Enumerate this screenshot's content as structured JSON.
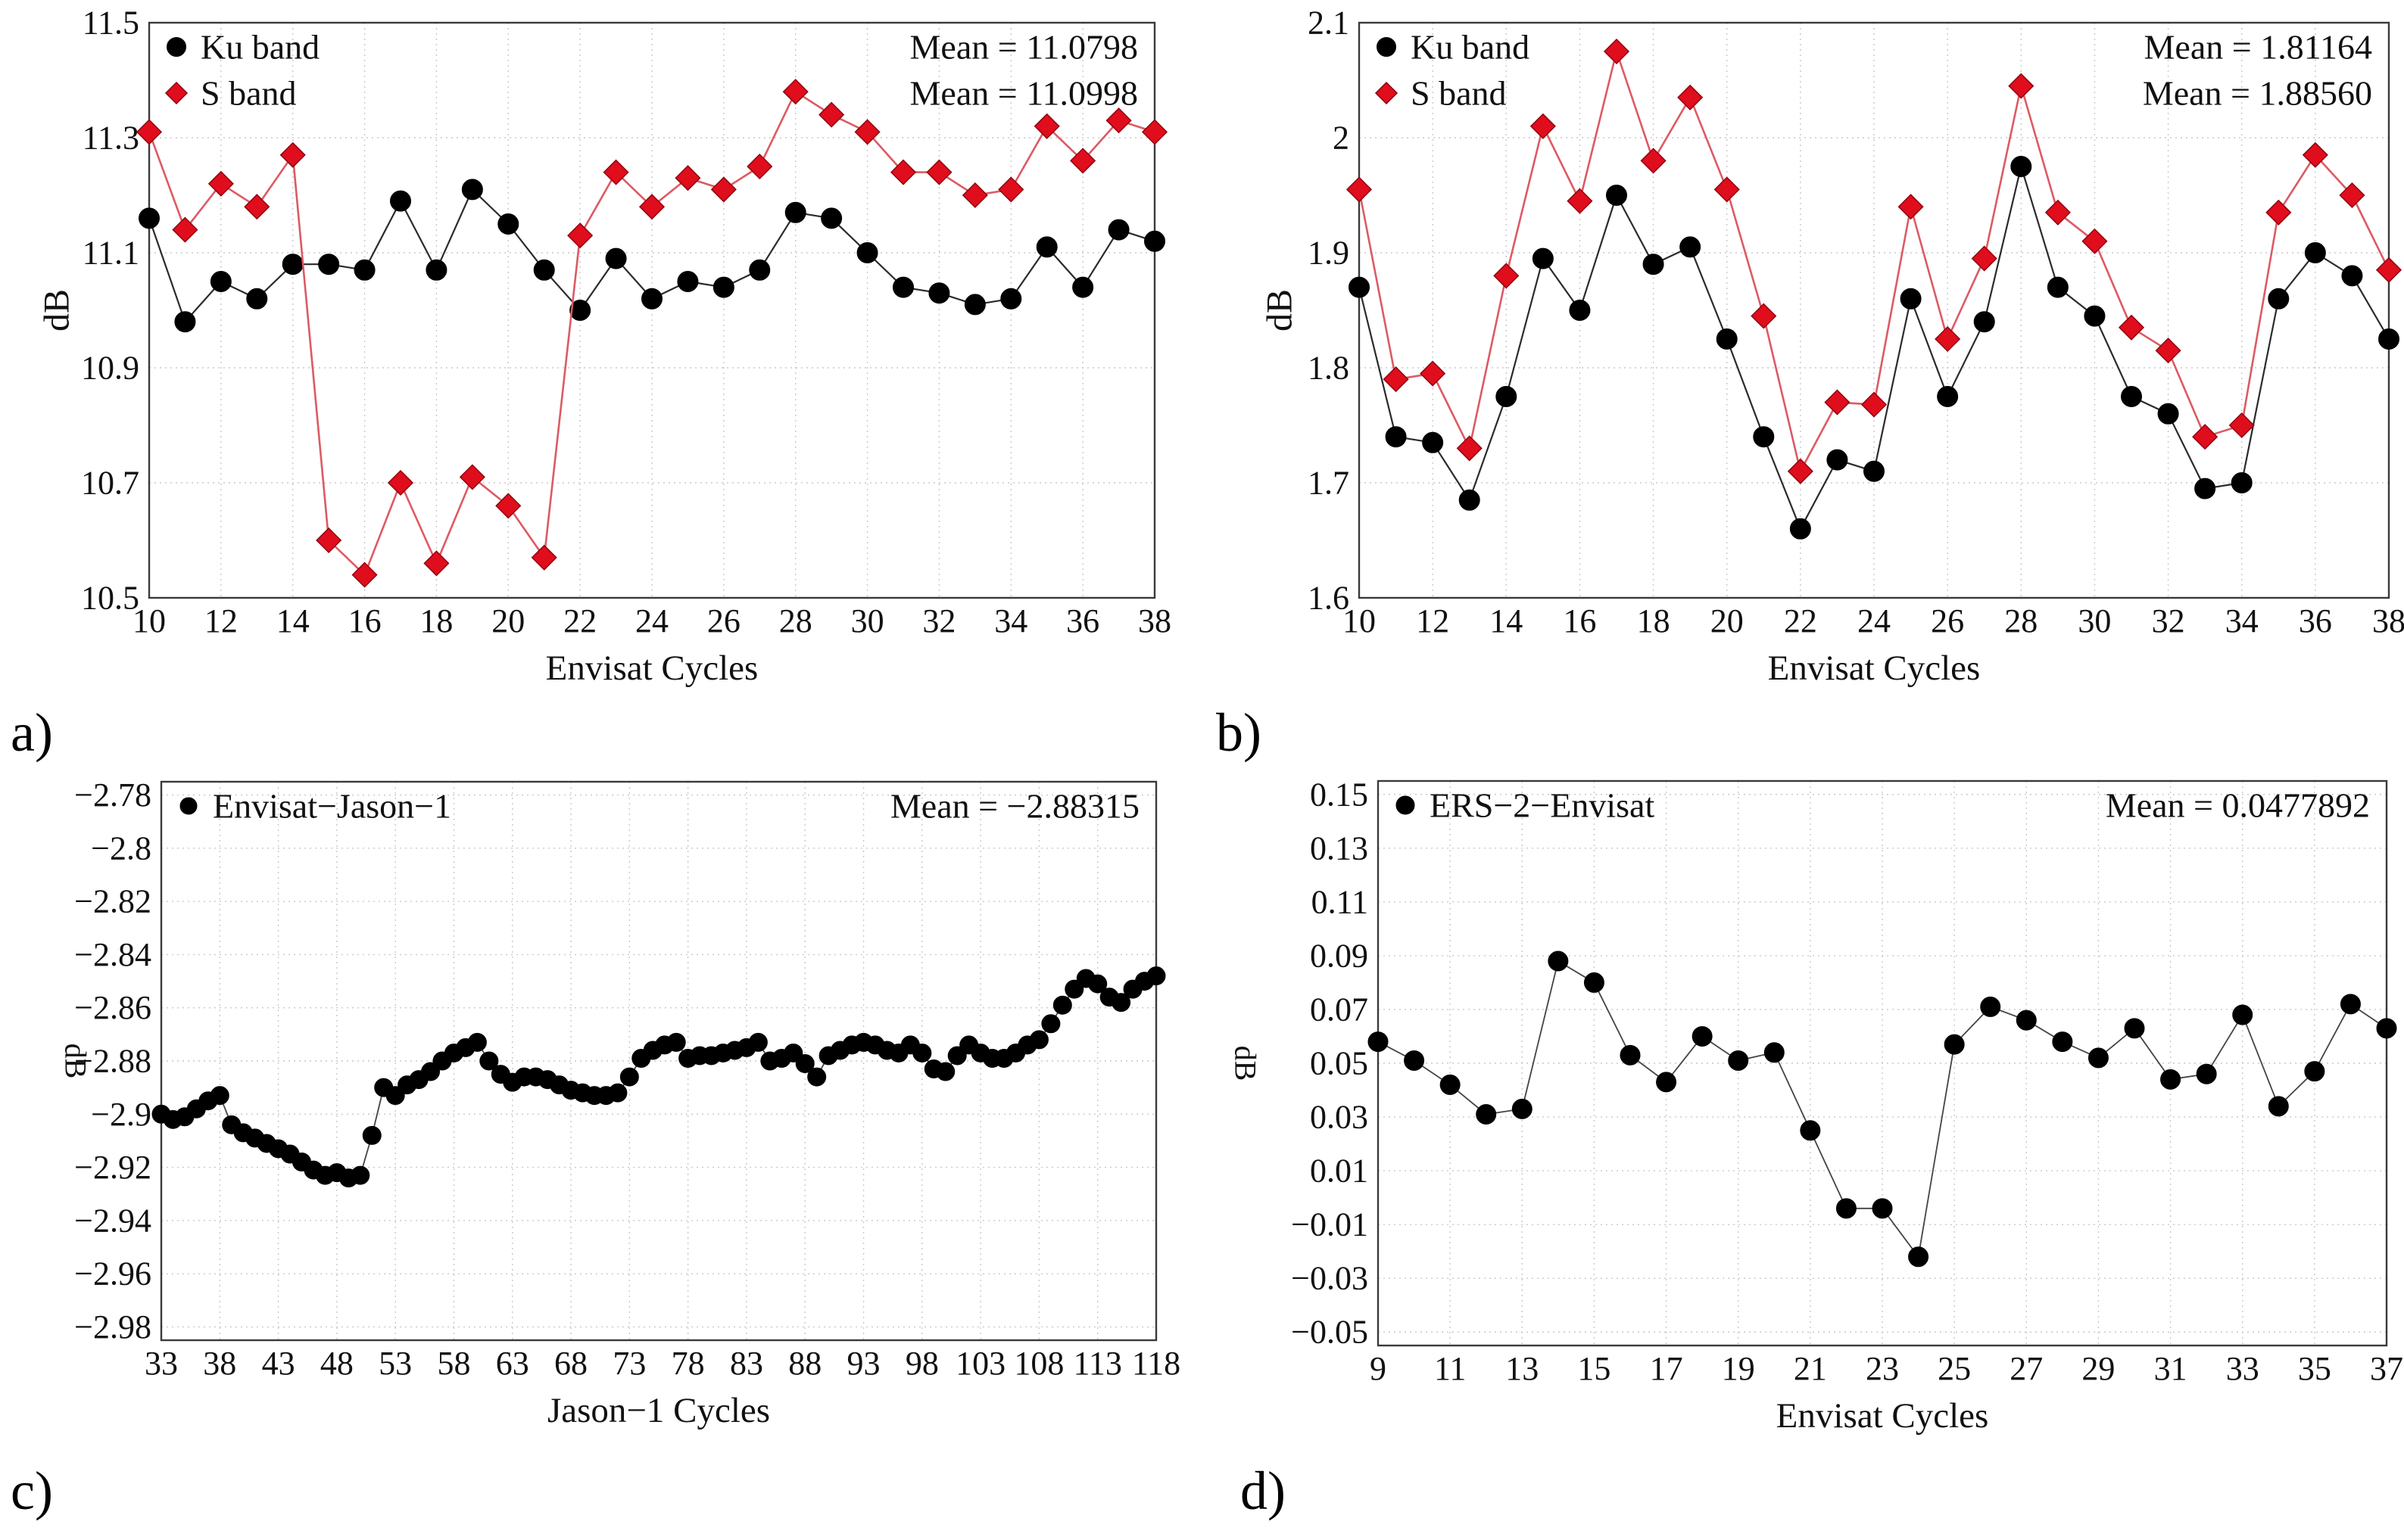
{
  "figure": {
    "background": "#ffffff",
    "colors": {
      "black_series": "#000000",
      "black_line": "#2b2b2b",
      "red_marker": "#e00d1c",
      "red_marker_edge": "#8f0310",
      "red_line": "#dd5a63",
      "grid": "#c9c9c9",
      "frame": "#3a3a3a"
    }
  },
  "chart_data": [
    {
      "id": "a",
      "panel_label": "a)",
      "type": "line",
      "xlabel": "Envisat Cycles",
      "ylabel": "dB",
      "xlim": [
        10,
        38
      ],
      "ylim": [
        10.5,
        11.5
      ],
      "grid": true,
      "legend_position": "top-left",
      "annotations": [
        "Mean = 11.0798",
        "Mean = 11.0998"
      ],
      "xtick_values": [
        10,
        12,
        14,
        16,
        18,
        20,
        22,
        24,
        26,
        28,
        30,
        32,
        34,
        36,
        38
      ],
      "xtick_labels": [
        "10",
        "12",
        "14",
        "16",
        "18",
        "20",
        "22",
        "24",
        "26",
        "28",
        "30",
        "32",
        "34",
        "36",
        "38"
      ],
      "ytick_values": [
        10.5,
        10.7,
        10.9,
        11.1,
        11.3,
        11.5
      ],
      "ytick_labels": [
        "10.5",
        "10.7",
        "10.9",
        "11.1",
        "11.3",
        "11.5"
      ],
      "x": [
        10,
        11,
        12,
        13,
        14,
        15,
        16,
        17,
        18,
        19,
        20,
        21,
        22,
        23,
        24,
        25,
        26,
        27,
        28,
        29,
        30,
        31,
        32,
        33,
        34,
        35,
        36,
        37,
        38
      ],
      "series": [
        {
          "name": "Ku band",
          "marker": "circle",
          "marker_color": "#000000",
          "marker_edge": "#000000",
          "line_color": "#2b2b2b",
          "line_width": 2.2,
          "values": [
            11.16,
            10.98,
            11.05,
            11.02,
            11.08,
            11.08,
            11.07,
            11.19,
            11.07,
            11.21,
            11.15,
            11.07,
            11.0,
            11.09,
            11.02,
            11.05,
            11.04,
            11.07,
            11.17,
            11.16,
            11.1,
            11.04,
            11.03,
            11.01,
            11.02,
            11.11,
            11.04,
            11.14,
            11.12
          ]
        },
        {
          "name": "S band",
          "marker": "diamond",
          "marker_color": "#e00d1c",
          "marker_edge": "#8f0310",
          "line_color": "#dd5a63",
          "line_width": 2.6,
          "values": [
            11.31,
            11.14,
            11.22,
            11.18,
            11.27,
            10.6,
            10.54,
            10.7,
            10.56,
            10.71,
            10.66,
            10.57,
            11.13,
            11.24,
            11.18,
            11.23,
            11.21,
            11.25,
            11.38,
            11.34,
            11.31,
            11.24,
            11.24,
            11.2,
            11.21,
            11.32,
            11.26,
            11.33,
            11.31
          ]
        }
      ]
    },
    {
      "id": "b",
      "panel_label": "b)",
      "type": "line",
      "xlabel": "Envisat Cycles",
      "ylabel": "dB",
      "xlim": [
        10,
        38
      ],
      "ylim": [
        1.6,
        2.1
      ],
      "grid": true,
      "legend_position": "top-left",
      "annotations": [
        "Mean = 1.81164",
        "Mean = 1.88560"
      ],
      "xtick_values": [
        10,
        12,
        14,
        16,
        18,
        20,
        22,
        24,
        26,
        28,
        30,
        32,
        34,
        36,
        38
      ],
      "xtick_labels": [
        "10",
        "12",
        "14",
        "16",
        "18",
        "20",
        "22",
        "24",
        "26",
        "28",
        "30",
        "32",
        "34",
        "36",
        "38"
      ],
      "ytick_values": [
        1.6,
        1.7,
        1.8,
        1.9,
        2.0,
        2.1
      ],
      "ytick_labels": [
        "1.6",
        "1.7",
        "1.8",
        "1.9",
        "2",
        "2.1"
      ],
      "x": [
        10,
        11,
        12,
        13,
        14,
        15,
        16,
        17,
        18,
        19,
        20,
        21,
        22,
        23,
        24,
        25,
        26,
        27,
        28,
        29,
        30,
        31,
        32,
        33,
        34,
        35,
        36,
        37,
        38
      ],
      "series": [
        {
          "name": "Ku band",
          "marker": "circle",
          "marker_color": "#000000",
          "marker_edge": "#000000",
          "line_color": "#2b2b2b",
          "line_width": 2.2,
          "values": [
            1.87,
            1.74,
            1.735,
            1.685,
            1.775,
            1.895,
            1.85,
            1.95,
            1.89,
            1.905,
            1.825,
            1.74,
            1.66,
            1.72,
            1.71,
            1.86,
            1.775,
            1.84,
            1.975,
            1.87,
            1.845,
            1.775,
            1.76,
            1.695,
            1.7,
            1.86,
            1.9,
            1.88,
            1.825
          ]
        },
        {
          "name": "S band",
          "marker": "diamond",
          "marker_color": "#e00d1c",
          "marker_edge": "#8f0310",
          "line_color": "#dd5a63",
          "line_width": 2.6,
          "values": [
            1.955,
            1.79,
            1.795,
            1.73,
            1.88,
            2.01,
            1.945,
            2.075,
            1.98,
            2.035,
            1.955,
            1.845,
            1.71,
            1.77,
            1.768,
            1.94,
            1.825,
            1.895,
            2.045,
            1.935,
            1.91,
            1.835,
            1.815,
            1.74,
            1.75,
            1.935,
            1.985,
            1.95,
            1.885
          ]
        }
      ]
    },
    {
      "id": "c",
      "panel_label": "c)",
      "type": "line",
      "xlabel": "Jason−1 Cycles",
      "ylabel": "dB",
      "xlim": [
        33,
        118
      ],
      "ylim": [
        -2.985,
        -2.775
      ],
      "grid": true,
      "legend_position": "top-left",
      "annotations": [
        "Mean = −2.88315"
      ],
      "xtick_values": [
        33,
        38,
        43,
        48,
        53,
        58,
        63,
        68,
        73,
        78,
        83,
        88,
        93,
        98,
        103,
        108,
        113,
        118
      ],
      "xtick_labels": [
        "33",
        "38",
        "43",
        "48",
        "53",
        "58",
        "63",
        "68",
        "73",
        "78",
        "83",
        "88",
        "93",
        "98",
        "103",
        "108",
        "113",
        "118"
      ],
      "ytick_values": [
        -2.98,
        -2.96,
        -2.94,
        -2.92,
        -2.9,
        -2.88,
        -2.86,
        -2.84,
        -2.82,
        -2.8,
        -2.78
      ],
      "ytick_labels": [
        "−2.98",
        "−2.96",
        "−2.94",
        "−2.92",
        "−2.9",
        "−2.88",
        "−2.86",
        "−2.84",
        "−2.82",
        "−2.8",
        "−2.78"
      ],
      "x": [
        33,
        34,
        35,
        36,
        37,
        38,
        39,
        40,
        41,
        42,
        43,
        44,
        45,
        46,
        47,
        48,
        49,
        50,
        51,
        52,
        53,
        54,
        55,
        56,
        57,
        58,
        59,
        60,
        61,
        62,
        63,
        64,
        65,
        66,
        67,
        68,
        69,
        70,
        71,
        72,
        73,
        74,
        75,
        76,
        77,
        78,
        79,
        80,
        81,
        82,
        83,
        84,
        85,
        86,
        87,
        88,
        89,
        90,
        91,
        92,
        93,
        94,
        95,
        96,
        97,
        98,
        99,
        100,
        101,
        102,
        103,
        104,
        105,
        106,
        107,
        108,
        109,
        110,
        111,
        112,
        113,
        114,
        115,
        116,
        117,
        118
      ],
      "series": [
        {
          "name": "Envisat−Jason−1",
          "marker": "circle",
          "marker_color": "#000000",
          "marker_edge": "#000000",
          "line_color": "#444444",
          "line_width": 1.8,
          "values": [
            -2.9,
            -2.902,
            -2.901,
            -2.898,
            -2.895,
            -2.893,
            -2.904,
            -2.907,
            -2.909,
            -2.911,
            -2.913,
            -2.915,
            -2.918,
            -2.921,
            -2.923,
            -2.922,
            -2.924,
            -2.923,
            -2.908,
            -2.89,
            -2.893,
            -2.889,
            -2.887,
            -2.884,
            -2.88,
            -2.877,
            -2.875,
            -2.873,
            -2.88,
            -2.885,
            -2.888,
            -2.886,
            -2.886,
            -2.887,
            -2.889,
            -2.891,
            -2.892,
            -2.893,
            -2.893,
            -2.892,
            -2.886,
            -2.879,
            -2.876,
            -2.874,
            -2.873,
            -2.879,
            -2.878,
            -2.878,
            -2.877,
            -2.876,
            -2.875,
            -2.873,
            -2.88,
            -2.879,
            -2.877,
            -2.881,
            -2.886,
            -2.878,
            -2.876,
            -2.874,
            -2.873,
            -2.874,
            -2.876,
            -2.877,
            -2.874,
            -2.877,
            -2.883,
            -2.884,
            -2.878,
            -2.874,
            -2.877,
            -2.879,
            -2.879,
            -2.877,
            -2.874,
            -2.872,
            -2.866,
            -2.859,
            -2.853,
            -2.849,
            -2.851,
            -2.856,
            -2.858,
            -2.853,
            -2.85,
            -2.848
          ]
        }
      ]
    },
    {
      "id": "d",
      "panel_label": "d)",
      "type": "line",
      "xlabel": "Envisat Cycles",
      "ylabel": "dB",
      "xlim": [
        9,
        37
      ],
      "ylim": [
        -0.055,
        0.155
      ],
      "grid": true,
      "legend_position": "top-left",
      "annotations": [
        "Mean = 0.0477892"
      ],
      "xtick_values": [
        9,
        11,
        13,
        15,
        17,
        19,
        21,
        23,
        25,
        27,
        29,
        31,
        33,
        35,
        37
      ],
      "xtick_labels": [
        "9",
        "11",
        "13",
        "15",
        "17",
        "19",
        "21",
        "23",
        "25",
        "27",
        "29",
        "31",
        "33",
        "35",
        "37"
      ],
      "ytick_values": [
        -0.05,
        -0.03,
        -0.01,
        0.01,
        0.03,
        0.05,
        0.07,
        0.09,
        0.11,
        0.13,
        0.15
      ],
      "ytick_labels": [
        "−0.05",
        "−0.03",
        "−0.01",
        "0.01",
        "0.03",
        "0.05",
        "0.07",
        "0.09",
        "0.11",
        "0.13",
        "0.15"
      ],
      "x": [
        9,
        10,
        11,
        12,
        13,
        14,
        15,
        16,
        17,
        18,
        19,
        20,
        21,
        22,
        23,
        24,
        25,
        26,
        27,
        28,
        29,
        30,
        31,
        32,
        33,
        34,
        35,
        36,
        37
      ],
      "series": [
        {
          "name": "ERS−2−Envisat",
          "marker": "circle",
          "marker_color": "#000000",
          "marker_edge": "#000000",
          "line_color": "#444444",
          "line_width": 1.8,
          "values": [
            0.058,
            0.051,
            0.042,
            0.031,
            0.033,
            0.088,
            0.08,
            0.053,
            0.043,
            0.06,
            0.051,
            0.054,
            0.025,
            -0.004,
            -0.004,
            -0.022,
            0.057,
            0.071,
            0.066,
            0.058,
            0.052,
            0.063,
            0.044,
            0.046,
            0.068,
            0.034,
            0.047,
            0.072,
            0.063
          ]
        }
      ]
    }
  ]
}
